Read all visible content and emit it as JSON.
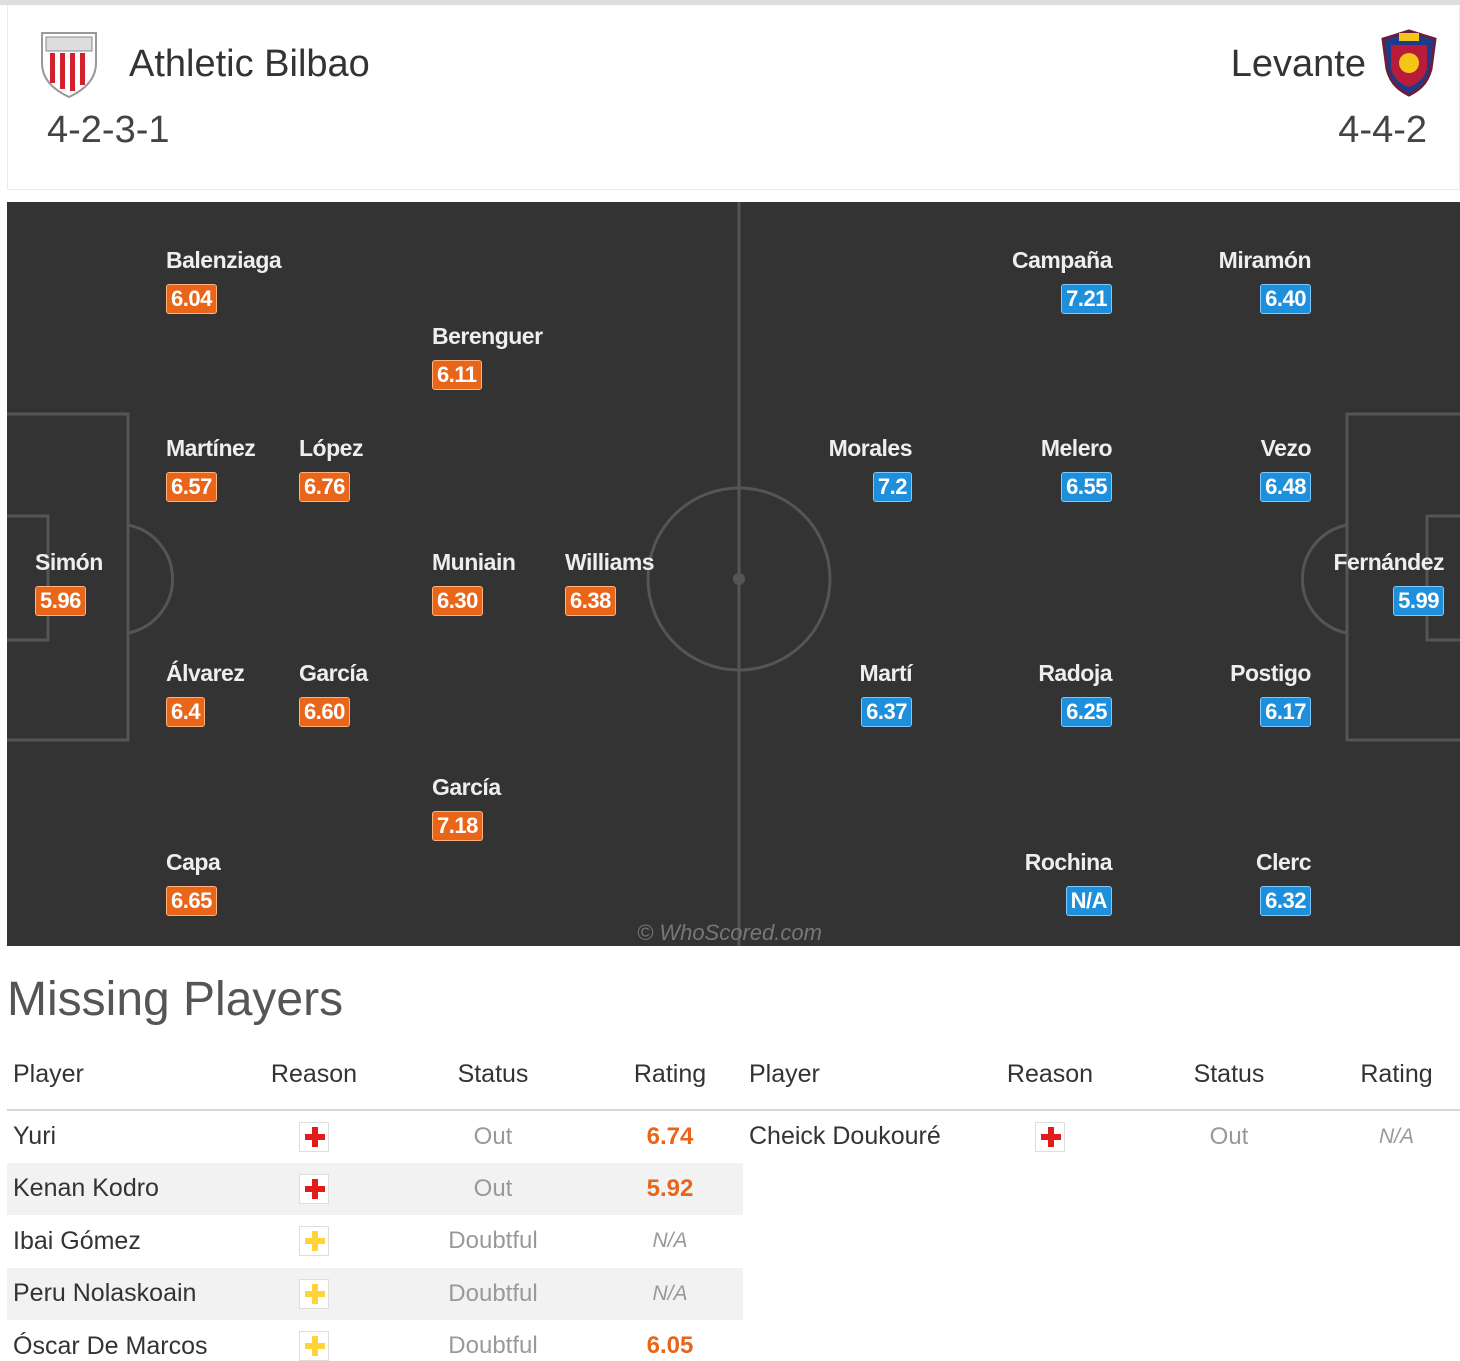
{
  "header": {
    "home": {
      "name": "Athletic Bilbao",
      "formation": "4-2-3-1",
      "crest_icon": "athletic-bilbao-crest-icon"
    },
    "away": {
      "name": "Levante",
      "formation": "4-4-2",
      "crest_icon": "levante-crest-icon"
    }
  },
  "colors": {
    "home_rating": "#e8651a",
    "away_rating": "#1e8fdb",
    "pitch": "#333333"
  },
  "pitch": {
    "watermark": "© WhoScored.com",
    "home_players": [
      {
        "name": "Balenziaga",
        "rating": "6.04"
      },
      {
        "name": "Berenguer",
        "rating": "6.11"
      },
      {
        "name": "Martínez",
        "rating": "6.57"
      },
      {
        "name": "López",
        "rating": "6.76"
      },
      {
        "name": "Simón",
        "rating": "5.96"
      },
      {
        "name": "Muniain",
        "rating": "6.30"
      },
      {
        "name": "Williams",
        "rating": "6.38"
      },
      {
        "name": "Álvarez",
        "rating": "6.4"
      },
      {
        "name": "García",
        "rating": "6.60"
      },
      {
        "name": "García",
        "rating": "7.18"
      },
      {
        "name": "Capa",
        "rating": "6.65"
      }
    ],
    "away_players": [
      {
        "name": "Campaña",
        "rating": "7.21"
      },
      {
        "name": "Miramón",
        "rating": "6.40"
      },
      {
        "name": "Morales",
        "rating": "7.2"
      },
      {
        "name": "Melero",
        "rating": "6.55"
      },
      {
        "name": "Vezo",
        "rating": "6.48"
      },
      {
        "name": "Fernández",
        "rating": "5.99"
      },
      {
        "name": "Martí",
        "rating": "6.37"
      },
      {
        "name": "Radoja",
        "rating": "6.25"
      },
      {
        "name": "Postigo",
        "rating": "6.17"
      },
      {
        "name": "Rochina",
        "rating": "N/A"
      },
      {
        "name": "Clerc",
        "rating": "6.32"
      }
    ]
  },
  "missing": {
    "title": "Missing Players",
    "columns": [
      "Player",
      "Reason",
      "Status",
      "Rating"
    ],
    "home": [
      {
        "player": "Yuri",
        "reason": "injury",
        "status": "Out",
        "rating": "6.74"
      },
      {
        "player": "Kenan Kodro",
        "reason": "injury",
        "status": "Out",
        "rating": "5.92"
      },
      {
        "player": "Ibai Gómez",
        "reason": "doubtful",
        "status": "Doubtful",
        "rating": "N/A"
      },
      {
        "player": "Peru Nolaskoain",
        "reason": "doubtful",
        "status": "Doubtful",
        "rating": "N/A"
      },
      {
        "player": "Óscar De Marcos",
        "reason": "doubtful",
        "status": "Doubtful",
        "rating": "6.05"
      }
    ],
    "away": [
      {
        "player": "Cheick Doukouré",
        "reason": "injury",
        "status": "Out",
        "rating": "N/A"
      }
    ]
  }
}
